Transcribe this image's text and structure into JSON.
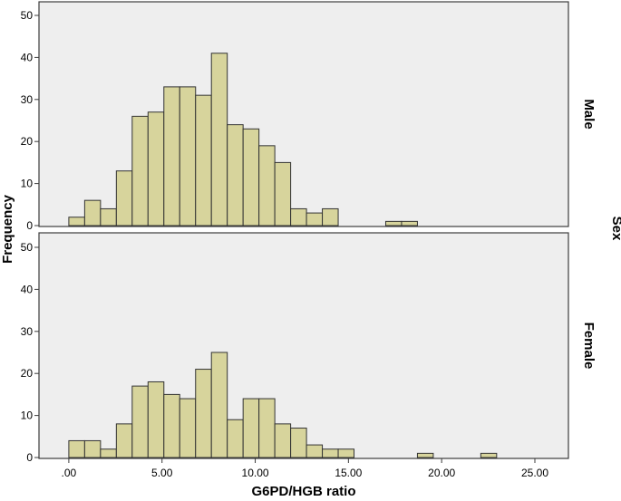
{
  "chart_data": {
    "type": "bar",
    "xlabel": "G6PD/HGB ratio",
    "ylabel": "Frequency",
    "facet_label": "Sex",
    "bin_width": 0.85,
    "bins_start": 0.0,
    "xlim": [
      -1.6,
      26.8
    ],
    "x_ticks": [
      ".00",
      "5.00",
      "10.00",
      "15.00",
      "20.00",
      "25.00"
    ],
    "ylim": [
      0,
      52
    ],
    "y_ticks": [
      "0",
      "10",
      "20",
      "30",
      "40",
      "50"
    ],
    "grid": false,
    "panels": [
      {
        "name": "Male",
        "bins": [
          {
            "x": 0.0,
            "count": 2
          },
          {
            "x": 0.85,
            "count": 6
          },
          {
            "x": 1.7,
            "count": 4
          },
          {
            "x": 2.55,
            "count": 13
          },
          {
            "x": 3.4,
            "count": 26
          },
          {
            "x": 4.25,
            "count": 27
          },
          {
            "x": 5.1,
            "count": 33
          },
          {
            "x": 5.95,
            "count": 33
          },
          {
            "x": 6.8,
            "count": 31
          },
          {
            "x": 7.65,
            "count": 41
          },
          {
            "x": 8.5,
            "count": 24
          },
          {
            "x": 9.35,
            "count": 23
          },
          {
            "x": 10.2,
            "count": 19
          },
          {
            "x": 11.05,
            "count": 15
          },
          {
            "x": 11.9,
            "count": 4
          },
          {
            "x": 12.75,
            "count": 3
          },
          {
            "x": 13.6,
            "count": 4
          },
          {
            "x": 17.0,
            "count": 1
          },
          {
            "x": 17.85,
            "count": 1
          }
        ]
      },
      {
        "name": "Female",
        "bins": [
          {
            "x": 0.0,
            "count": 4
          },
          {
            "x": 0.85,
            "count": 4
          },
          {
            "x": 1.7,
            "count": 2
          },
          {
            "x": 2.55,
            "count": 8
          },
          {
            "x": 3.4,
            "count": 17
          },
          {
            "x": 4.25,
            "count": 18
          },
          {
            "x": 5.1,
            "count": 15
          },
          {
            "x": 5.95,
            "count": 14
          },
          {
            "x": 6.8,
            "count": 21
          },
          {
            "x": 7.65,
            "count": 25
          },
          {
            "x": 8.5,
            "count": 9
          },
          {
            "x": 9.35,
            "count": 14
          },
          {
            "x": 10.2,
            "count": 14
          },
          {
            "x": 11.05,
            "count": 8
          },
          {
            "x": 11.9,
            "count": 7
          },
          {
            "x": 12.75,
            "count": 3
          },
          {
            "x": 13.6,
            "count": 2
          },
          {
            "x": 14.45,
            "count": 2
          },
          {
            "x": 18.7,
            "count": 1
          },
          {
            "x": 22.1,
            "count": 1
          }
        ]
      }
    ]
  },
  "colors": {
    "panel_bg": "#eeeeee",
    "bar_fill": "#d7d49c",
    "bar_stroke": "#333333",
    "frame": "#3c3c3c"
  }
}
